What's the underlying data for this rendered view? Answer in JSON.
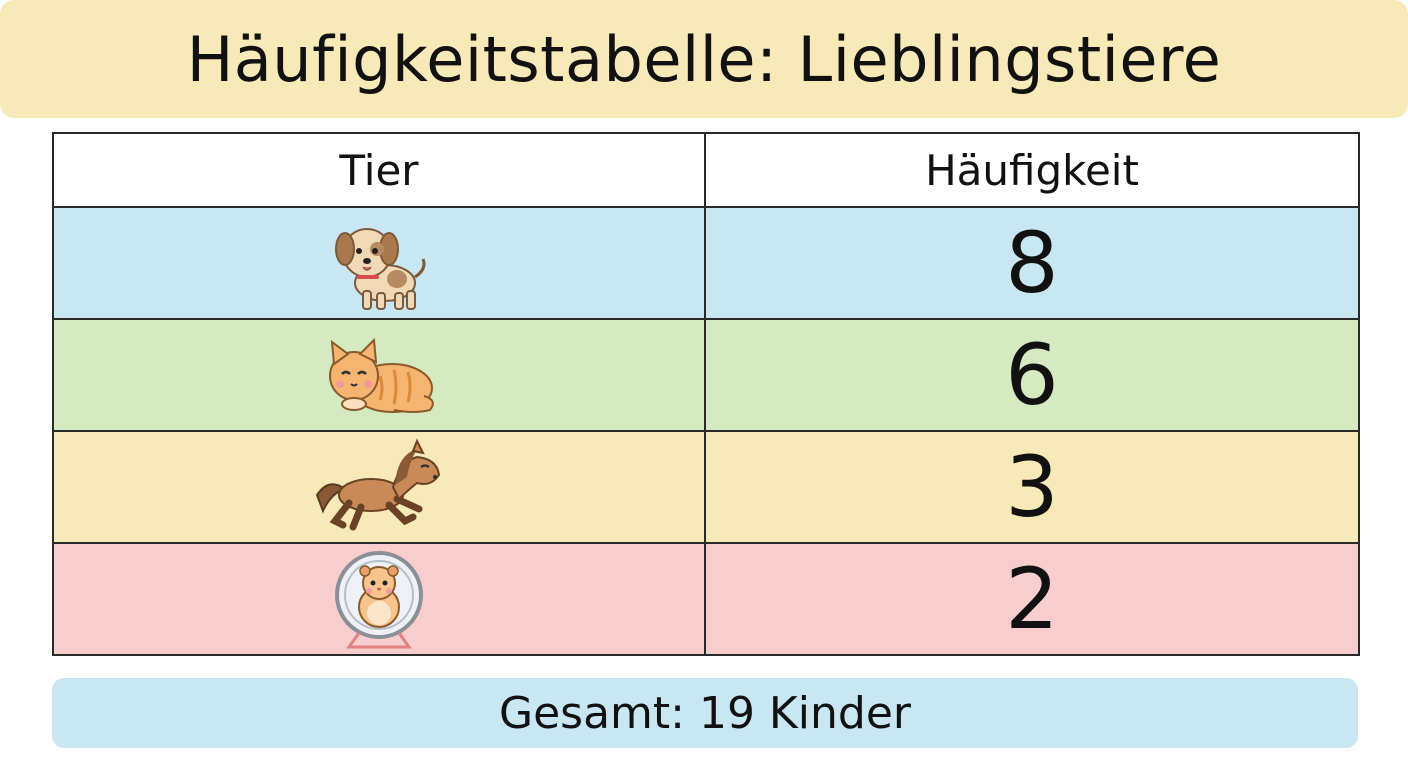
{
  "title": "Häufigkeitstabelle: Lieblingstiere",
  "table": {
    "headers": [
      "Tier",
      "Häufigkeit"
    ],
    "rows": [
      {
        "icon": "dog-icon",
        "value": "8",
        "color": "#c9e6f3"
      },
      {
        "icon": "cat-icon",
        "value": "6",
        "color": "#d5eac0"
      },
      {
        "icon": "horse-icon",
        "value": "3",
        "color": "#f8eab8"
      },
      {
        "icon": "hamster-icon",
        "value": "2",
        "color": "#f8cdcd"
      }
    ]
  },
  "total": "Gesamt: 19 Kinder",
  "chart_data": {
    "type": "table",
    "columns": [
      "Tier",
      "Häufigkeit"
    ],
    "categories": [
      "dog-icon",
      "cat-icon",
      "horse-icon",
      "hamster-icon"
    ],
    "values": [
      8,
      6,
      3,
      2
    ]
  }
}
